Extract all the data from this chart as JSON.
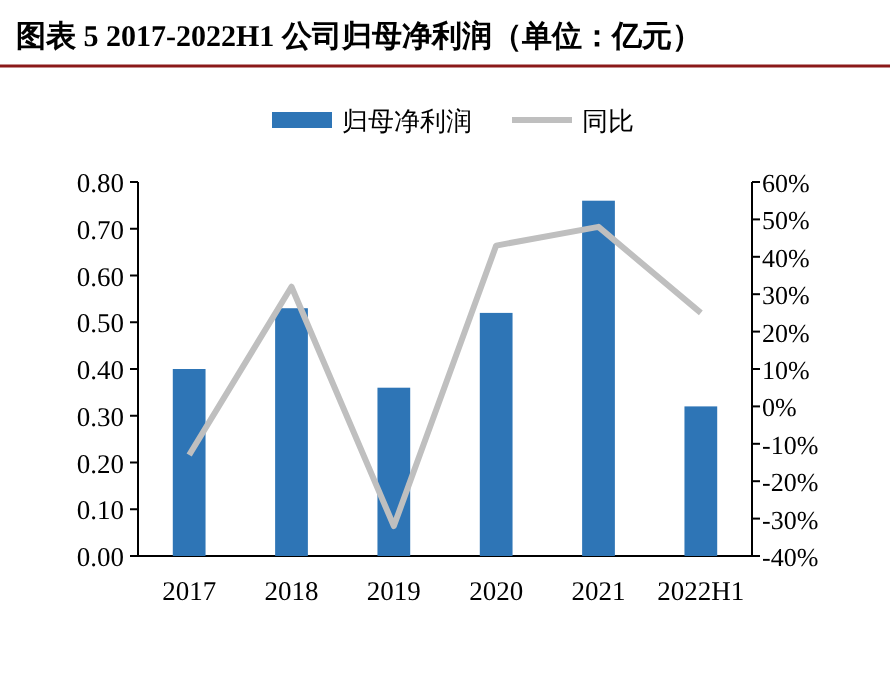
{
  "chart_data": {
    "type": "bar",
    "title": "图表 5 2017-2022H1 公司归母净利润（单位：亿元）",
    "categories": [
      "2017",
      "2018",
      "2019",
      "2020",
      "2021",
      "2022H1"
    ],
    "series": [
      {
        "name": "归母净利润",
        "color": "#2e75b6",
        "values": [
          0.4,
          0.53,
          0.36,
          0.52,
          0.76,
          0.32
        ]
      },
      {
        "name": "同比",
        "type": "line",
        "axis": "y2",
        "color": "#bfbfbf",
        "values": [
          -13,
          32,
          -32,
          43,
          48,
          25
        ]
      }
    ],
    "ylim": [
      0,
      0.8
    ],
    "yticks": [
      {
        "value": 0,
        "label": "0.00"
      },
      {
        "value": 0.1,
        "label": "0.10"
      },
      {
        "value": 0.2,
        "label": "0.20"
      },
      {
        "value": 0.3,
        "label": "0.30"
      },
      {
        "value": 0.4,
        "label": "0.40"
      },
      {
        "value": 0.5,
        "label": "0.50"
      },
      {
        "value": 0.6,
        "label": "0.60"
      },
      {
        "value": 0.7,
        "label": "0.70"
      },
      {
        "value": 0.8,
        "label": "0.80"
      }
    ],
    "y2lim": [
      -40,
      60
    ],
    "y2ticks": [
      {
        "value": -40,
        "label": "-40%"
      },
      {
        "value": -30,
        "label": "-30%"
      },
      {
        "value": -20,
        "label": "-20%"
      },
      {
        "value": -10,
        "label": "-10%"
      },
      {
        "value": 0,
        "label": "0%"
      },
      {
        "value": 10,
        "label": "10%"
      },
      {
        "value": 20,
        "label": "20%"
      },
      {
        "value": 30,
        "label": "30%"
      },
      {
        "value": 40,
        "label": "40%"
      },
      {
        "value": 50,
        "label": "50%"
      },
      {
        "value": 60,
        "label": "60%"
      }
    ],
    "legend": "top",
    "grid": false,
    "marker": "none",
    "line_style": "solid"
  }
}
